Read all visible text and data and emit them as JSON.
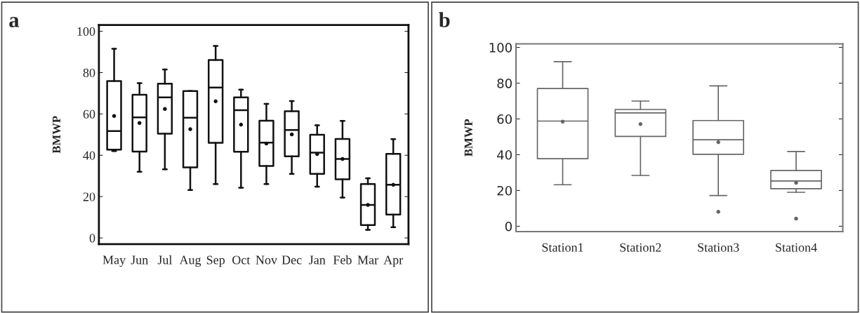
{
  "chart_data": [
    {
      "type": "box",
      "title": "a",
      "ylabel": "BMWP",
      "color": "#111111",
      "ylim": [
        -3,
        103
      ],
      "yticks": [
        0,
        20,
        40,
        60,
        80,
        100
      ],
      "grid": false,
      "categories": [
        "May",
        "Jun",
        "Jul",
        "Aug",
        "Sep",
        "Oct",
        "Nov",
        "Dec",
        "Jan",
        "Feb",
        "Mar",
        "Apr"
      ],
      "boxes": [
        {
          "low": 42,
          "q1": 42.7,
          "median": 51.7,
          "q3": 75.9,
          "high": 91.5,
          "mean": 59
        },
        {
          "low": 32,
          "q1": 41.8,
          "median": 58.3,
          "q3": 69.3,
          "high": 74.9,
          "mean": 55.6
        },
        {
          "low": 33.2,
          "q1": 50.4,
          "median": 68,
          "q3": 74.6,
          "high": 81.5,
          "mean": 62.4
        },
        {
          "low": 23.2,
          "q1": 34.1,
          "median": 58.2,
          "q3": 71.1,
          "high": 71.1,
          "mean": 52.6
        },
        {
          "low": 26.1,
          "q1": 46,
          "median": 72.8,
          "q3": 86.1,
          "high": 92.9,
          "mean": 66.1
        },
        {
          "low": 24.3,
          "q1": 41.7,
          "median": 61.8,
          "q3": 68,
          "high": 71.7,
          "mean": 54.8
        },
        {
          "low": 26.1,
          "q1": 34.8,
          "median": 46.1,
          "q3": 56.7,
          "high": 64.9,
          "mean": 45.7
        },
        {
          "low": 31,
          "q1": 39.5,
          "median": 52.2,
          "q3": 61.3,
          "high": 66.2,
          "mean": 50.1
        },
        {
          "low": 24.8,
          "q1": 31,
          "median": 41.3,
          "q3": 49.9,
          "high": 54.5,
          "mean": 40.6
        },
        {
          "low": 19.5,
          "q1": 28.4,
          "median": 38.2,
          "q3": 47.9,
          "high": 56.6,
          "mean": 38.2
        },
        {
          "low": 3.9,
          "q1": 6.2,
          "median": 16,
          "q3": 26.1,
          "high": 28.9,
          "mean": 16
        },
        {
          "low": 5.2,
          "q1": 11.3,
          "median": 25.7,
          "q3": 40.7,
          "high": 47.8,
          "mean": 25.7
        }
      ]
    },
    {
      "type": "box",
      "title": "b",
      "ylabel": "BMWP",
      "color": "#666666",
      "ylim": [
        -3,
        102
      ],
      "yticks": [
        0,
        20,
        40,
        60,
        80,
        100
      ],
      "grid": false,
      "categories": [
        "Station1",
        "Station2",
        "Station3",
        "Station4"
      ],
      "boxes": [
        {
          "low": 23.2,
          "q1": 37.8,
          "median": 58.8,
          "q3": 77,
          "high": 92,
          "mean": 58.5
        },
        {
          "low": 28.4,
          "q1": 50.2,
          "median": 63.4,
          "q3": 65.3,
          "high": 70,
          "mean": 57.1
        },
        {
          "low": 17.2,
          "q1": 40.2,
          "median": 48.4,
          "q3": 59.1,
          "high": 78.5,
          "mean": 47,
          "outliers": [
            8.1
          ]
        },
        {
          "low": 19,
          "q1": 21,
          "median": 25.3,
          "q3": 31.2,
          "high": 41.8,
          "mean": 24.3,
          "outliers": [
            4.3
          ]
        }
      ]
    }
  ]
}
